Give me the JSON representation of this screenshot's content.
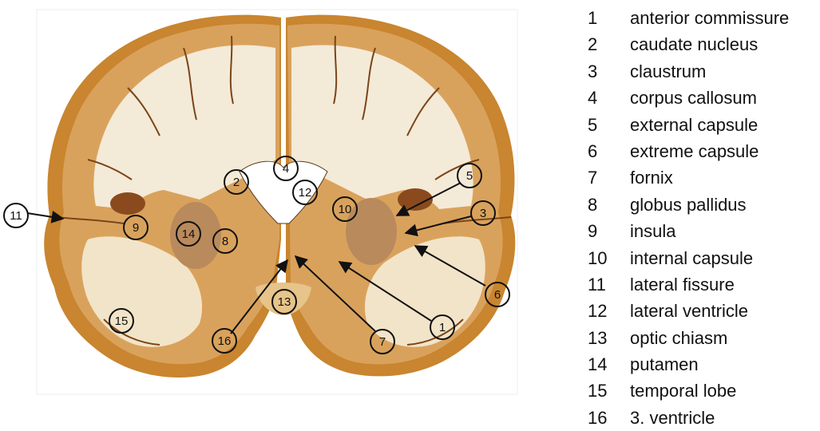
{
  "legend": [
    {
      "number": "1",
      "label": "anterior commissure"
    },
    {
      "number": "2",
      "label": "caudate nucleus"
    },
    {
      "number": "3",
      "label": "claustrum"
    },
    {
      "number": "4",
      "label": "corpus callosum"
    },
    {
      "number": "5",
      "label": "external capsule"
    },
    {
      "number": "6",
      "label": "extreme capsule"
    },
    {
      "number": "7",
      "label": "fornix"
    },
    {
      "number": "8",
      "label": "globus pallidus"
    },
    {
      "number": "9",
      "label": "insula"
    },
    {
      "number": "10",
      "label": "internal capsule"
    },
    {
      "number": "11",
      "label": "lateral fissure"
    },
    {
      "number": "12",
      "label": "lateral ventricle"
    },
    {
      "number": "13",
      "label": "optic chiasm"
    },
    {
      "number": "14",
      "label": "putamen"
    },
    {
      "number": "15",
      "label": "temporal lobe"
    },
    {
      "number": "16",
      "label": "3. ventricle"
    }
  ],
  "markers": [
    {
      "number": "1"
    },
    {
      "number": "2"
    },
    {
      "number": "3"
    },
    {
      "number": "4"
    },
    {
      "number": "5"
    },
    {
      "number": "6"
    },
    {
      "number": "7"
    },
    {
      "number": "8"
    },
    {
      "number": "9"
    },
    {
      "number": "10"
    },
    {
      "number": "11"
    },
    {
      "number": "12"
    },
    {
      "number": "13"
    },
    {
      "number": "14"
    },
    {
      "number": "15"
    },
    {
      "number": "16"
    }
  ],
  "colors": {
    "tissue_outer": "#c9852f",
    "cortex": "#d9a25c",
    "white_matter": "#f4ead8",
    "nuclei": "#b98a5c",
    "background": "#ffffff"
  }
}
